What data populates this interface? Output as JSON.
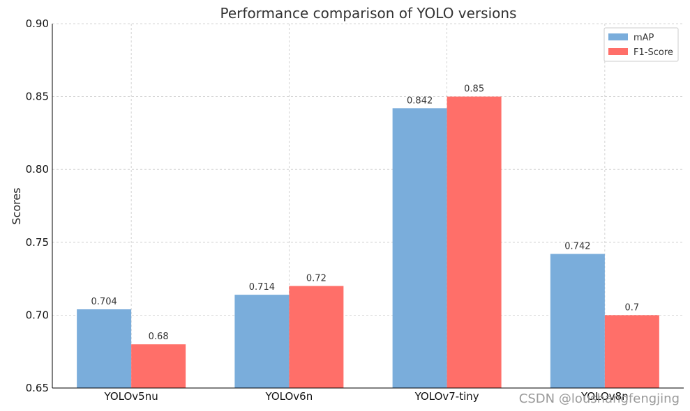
{
  "chart_data": {
    "type": "bar",
    "title": "Performance comparison of YOLO versions",
    "xlabel": "",
    "ylabel": "Scores",
    "categories": [
      "YOLOv5nu",
      "YOLOv6n",
      "YOLOv7-tiny",
      "YOLOv8n"
    ],
    "series": [
      {
        "name": "mAP",
        "values": [
          0.704,
          0.714,
          0.842,
          0.742
        ],
        "labels": [
          "0.704",
          "0.714",
          "0.842",
          "0.742"
        ],
        "color": "#7aaddb"
      },
      {
        "name": "F1-Score",
        "values": [
          0.68,
          0.72,
          0.85,
          0.7
        ],
        "labels": [
          "0.68",
          "0.72",
          "0.85",
          "0.7"
        ],
        "color": "#ff6f69"
      }
    ],
    "ylim": [
      0.65,
      0.9
    ],
    "yticks": [
      "0.65",
      "0.70",
      "0.75",
      "0.80",
      "0.85",
      "0.90"
    ],
    "grid": true,
    "legend_position": "top-right"
  },
  "watermark": "CSDN @loushangfengjing"
}
